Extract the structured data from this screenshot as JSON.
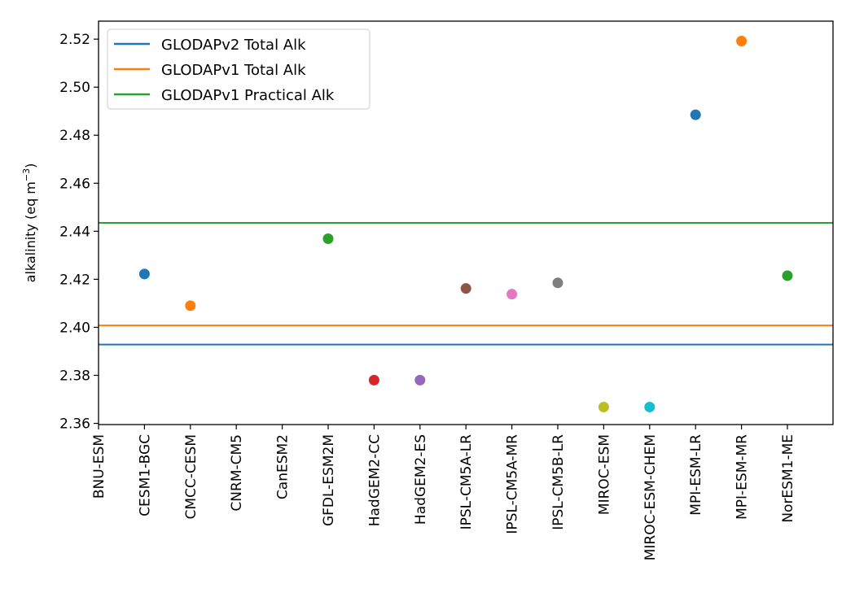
{
  "chart_data": {
    "type": "scatter",
    "title": "",
    "xlabel": "",
    "ylabel": "alkalinity (eq m",
    "ylabel_sup": "−3",
    "ylabel_close": ")",
    "ylim": [
      2.3595,
      2.5275
    ],
    "yticks": [
      "2.36",
      "2.38",
      "2.40",
      "2.42",
      "2.44",
      "2.46",
      "2.48",
      "2.50",
      "2.52"
    ],
    "grid": false,
    "legend_position": "top-left",
    "categories": [
      "BNU-ESM",
      "CESM1-BGC",
      "CMCC-CESM",
      "CNRM-CM5",
      "CanESM2",
      "GFDL-ESM2M",
      "HadGEM2-CC",
      "HadGEM2-ES",
      "IPSL-CM5A-LR",
      "IPSL-CM5A-MR",
      "IPSL-CM5B-LR",
      "MIROC-ESM",
      "MIROC-ESM-CHEM",
      "MPI-ESM-LR",
      "MPI-ESM-MR",
      "NorESM1-ME"
    ],
    "points": [
      {
        "category": "CESM1-BGC",
        "value": 2.4222,
        "color": "#1f77b4"
      },
      {
        "category": "CMCC-CESM",
        "value": 2.409,
        "color": "#ff7f0e"
      },
      {
        "category": "GFDL-ESM2M",
        "value": 2.4369,
        "color": "#2ca02c"
      },
      {
        "category": "HadGEM2-CC",
        "value": 2.378,
        "color": "#d62728"
      },
      {
        "category": "HadGEM2-ES",
        "value": 2.378,
        "color": "#9467bd"
      },
      {
        "category": "IPSL-CM5A-LR",
        "value": 2.4162,
        "color": "#8c564b"
      },
      {
        "category": "IPSL-CM5A-MR",
        "value": 2.4138,
        "color": "#e377c2"
      },
      {
        "category": "IPSL-CM5B-LR",
        "value": 2.4185,
        "color": "#7f7f7f"
      },
      {
        "category": "MIROC-ESM",
        "value": 2.3668,
        "color": "#bcbd22"
      },
      {
        "category": "MIROC-ESM-CHEM",
        "value": 2.3668,
        "color": "#17becf"
      },
      {
        "category": "MPI-ESM-LR",
        "value": 2.4885,
        "color": "#1f77b4"
      },
      {
        "category": "MPI-ESM-MR",
        "value": 2.5192,
        "color": "#ff7f0e"
      },
      {
        "category": "NorESM1-ME",
        "value": 2.4215,
        "color": "#2ca02c"
      }
    ],
    "reference_lines": [
      {
        "name": "GLODAPv2 Total Alk",
        "value": 2.3928,
        "color": "#1f77b4"
      },
      {
        "name": "GLODAPv1 Total Alk",
        "value": 2.4008,
        "color": "#ff7f0e"
      },
      {
        "name": "GLODAPv1 Practical Alk",
        "value": 2.4435,
        "color": "#2ca02c"
      }
    ]
  }
}
